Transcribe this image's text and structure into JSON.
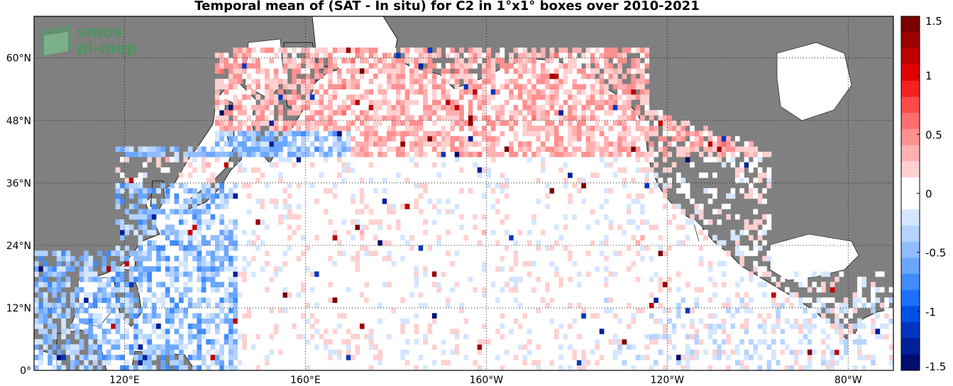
{
  "title": "Temporal mean of (SAT - In situ) for C2 in 1°x1° boxes over 2010-2021",
  "logo": {
    "line1": "smos",
    "line2": "pi-mep"
  },
  "map": {
    "lon_range": [
      100,
      -70
    ],
    "lat_range": [
      0,
      68
    ],
    "x_ticks": [
      {
        "lon": 120,
        "label": "120°E"
      },
      {
        "lon": 160,
        "label": "160°E"
      },
      {
        "lon": -160,
        "label": "160°W"
      },
      {
        "lon": -120,
        "label": "120°W"
      },
      {
        "lon": -80,
        "label": "80°W"
      }
    ],
    "y_ticks": [
      {
        "lat": 0,
        "label": "0°"
      },
      {
        "lat": 12,
        "label": "12°N"
      },
      {
        "lat": 24,
        "label": "24°N"
      },
      {
        "lat": 36,
        "label": "36°N"
      },
      {
        "lat": 48,
        "label": "48°N"
      },
      {
        "lat": 60,
        "label": "60°N"
      }
    ],
    "land_color": "#808080",
    "ocean_color": "#ffffff"
  },
  "colorbar": {
    "min": -1.5,
    "max": 1.5,
    "labels": [
      "1.5",
      "1",
      "0.5",
      "0",
      "-0.5",
      "-1",
      "-1.5"
    ],
    "colors": [
      "#7a0000",
      "#9c0000",
      "#bf0000",
      "#e00000",
      "#f52020",
      "#ff4a4a",
      "#ff6e6e",
      "#ff9090",
      "#ffb0b0",
      "#ffd0d0",
      "#ffffff",
      "#ffffff",
      "#d4e6ff",
      "#b4d3ff",
      "#90bdff",
      "#6aa6ff",
      "#408cff",
      "#1f70ff",
      "#0050e6",
      "#0035c0",
      "#001f99",
      "#000c70"
    ]
  }
}
